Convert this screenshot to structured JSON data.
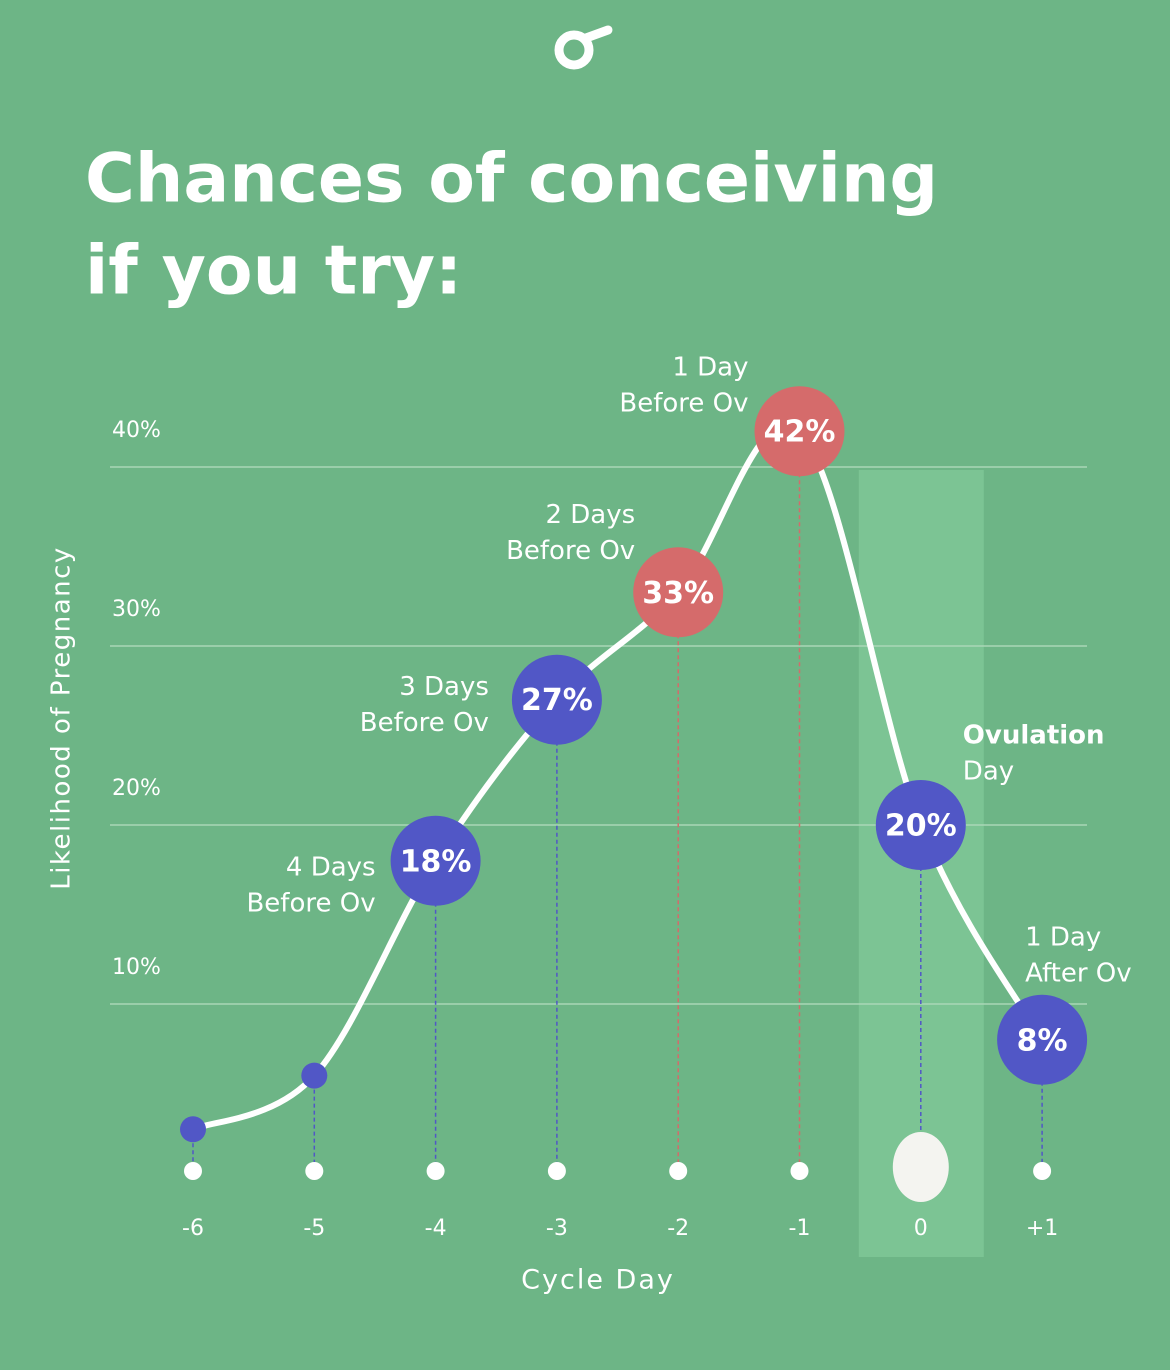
{
  "chart_data": {
    "type": "line",
    "title": [
      "Chances of conceiving",
      "if you try:"
    ],
    "y_label": "Likelihood of Pregnancy",
    "x_label": "Cycle Day",
    "categories": [
      "-6",
      "-5",
      "-4",
      "-3",
      "-2",
      "-1",
      "0",
      "+1"
    ],
    "values": [
      3,
      6,
      18,
      27,
      33,
      42,
      20,
      8
    ],
    "value_labels": [
      null,
      null,
      "18%",
      "27%",
      "33%",
      "42%",
      "20%",
      "8%"
    ],
    "point_colors": [
      "#5157c6",
      "#5157c6",
      "#5157c6",
      "#5157c6",
      "#d56b6b",
      "#d56b6b",
      "#5157c6",
      "#5157c6"
    ],
    "annotations": [
      null,
      null,
      [
        "4 Days",
        "Before Ov"
      ],
      [
        "3 Days",
        "Before Ov"
      ],
      [
        "2 Days",
        "Before Ov"
      ],
      [
        "1 Day",
        "Before Ov"
      ],
      [
        "Ovulation",
        "Day"
      ],
      [
        "1 Day",
        "After Ov"
      ]
    ],
    "highlight_category": "0",
    "line_color": "#ffffff",
    "ylim": [
      0,
      45
    ],
    "yticks": [
      {
        "value": 10,
        "label": "10%"
      },
      {
        "value": 20,
        "label": "20%"
      },
      {
        "value": 30,
        "label": "30%"
      },
      {
        "value": 40,
        "label": "40%"
      }
    ],
    "grid": true
  }
}
